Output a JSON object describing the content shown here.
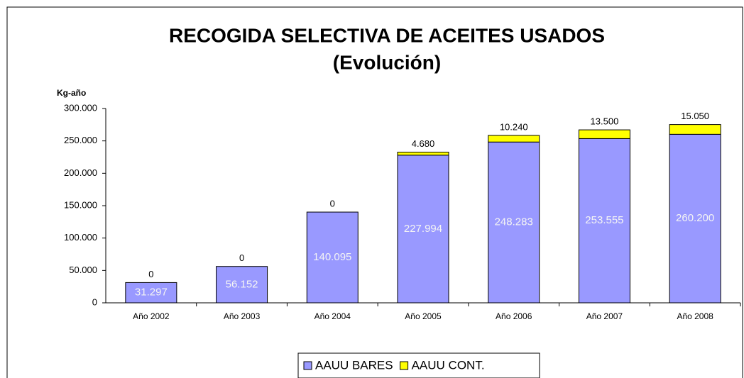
{
  "chart_data": {
    "type": "stacked_bar",
    "title": "RECOGIDA SELECTIVA DE ACEITES USADOS",
    "subtitle": "(Evolución)",
    "y_label": "Kg-año",
    "categories": [
      "Año 2002",
      "Año 2003",
      "Año 2004",
      "Año 2005",
      "Año 2006",
      "Año 2007",
      "Año 2008"
    ],
    "series": [
      {
        "name": "AAUU BARES",
        "color": "#9999ff",
        "values": [
          31297,
          56152,
          140095,
          227994,
          248283,
          253555,
          260200
        ],
        "value_labels": [
          "31.297",
          "56.152",
          "140.095",
          "227.994",
          "248.283",
          "253.555",
          "260.200"
        ]
      },
      {
        "name": "AAUU CONT.",
        "color": "#ffff00",
        "values": [
          0,
          0,
          0,
          4680,
          10240,
          13500,
          15050
        ],
        "value_labels": [
          "0",
          "0",
          "0",
          "4.680",
          "10.240",
          "13.500",
          "15.050"
        ]
      }
    ],
    "ylim": [
      0,
      300000
    ],
    "yticks": [
      0,
      {
        "value": 50000,
        "label": "50.000"
      },
      {
        "value": 100000,
        "label": "100.000"
      },
      {
        "value": 150000,
        "label": "150.000"
      },
      {
        "value": 200000,
        "label": "200.000"
      },
      {
        "value": 250000,
        "label": "250.000"
      },
      {
        "value": 300000,
        "label": "300.000"
      }
    ],
    "grid": false,
    "legend": "bottom"
  }
}
